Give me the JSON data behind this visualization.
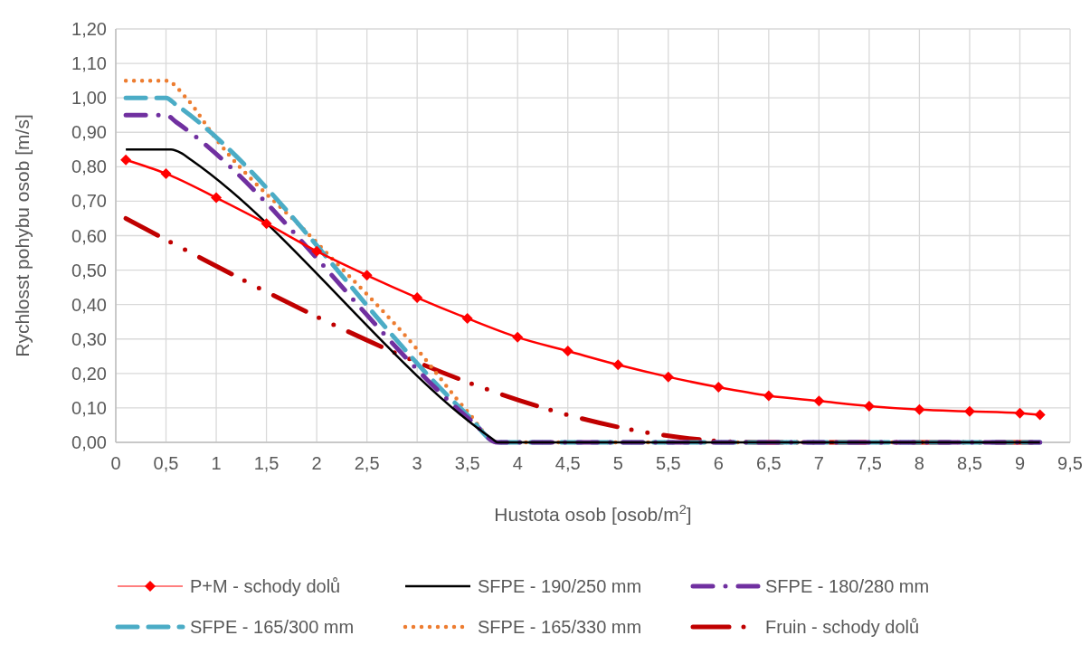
{
  "chart_data": {
    "type": "line",
    "xlabel": "Hustota osob [osob/m$^{2}$]",
    "ylabel": "Rychlosst pohybu osob [m/s]",
    "xlim": [
      0,
      9.5
    ],
    "xticks": [
      {
        "value": 0,
        "label": "0"
      },
      {
        "value": 0.5,
        "label": "0,5"
      },
      {
        "value": 1,
        "label": "1"
      },
      {
        "value": 1.5,
        "label": "1,5"
      },
      {
        "value": 2,
        "label": "2"
      },
      {
        "value": 2.5,
        "label": "2,5"
      },
      {
        "value": 3,
        "label": "3"
      },
      {
        "value": 3.5,
        "label": "3,5"
      },
      {
        "value": 4,
        "label": "4"
      },
      {
        "value": 4.5,
        "label": "4,5"
      },
      {
        "value": 5,
        "label": "5"
      },
      {
        "value": 5.5,
        "label": "5,5"
      },
      {
        "value": 6,
        "label": "6"
      },
      {
        "value": 6.5,
        "label": "6,5"
      },
      {
        "value": 7,
        "label": "7"
      },
      {
        "value": 7.5,
        "label": "7,5"
      },
      {
        "value": 8,
        "label": "8"
      },
      {
        "value": 8.5,
        "label": "8,5"
      },
      {
        "value": 9,
        "label": "9"
      },
      {
        "value": 9.5,
        "label": "9,5"
      }
    ],
    "ylim": [
      0,
      1.2
    ],
    "yticks": [
      {
        "value": 0,
        "label": "0,00"
      },
      {
        "value": 0.1,
        "label": "0,10"
      },
      {
        "value": 0.2,
        "label": "0,20"
      },
      {
        "value": 0.3,
        "label": "0,30"
      },
      {
        "value": 0.4,
        "label": "0,40"
      },
      {
        "value": 0.5,
        "label": "0,50"
      },
      {
        "value": 0.6,
        "label": "0,60"
      },
      {
        "value": 0.7,
        "label": "0,70"
      },
      {
        "value": 0.8,
        "label": "0,80"
      },
      {
        "value": 0.9,
        "label": "0,90"
      },
      {
        "value": 1,
        "label": "1,00"
      },
      {
        "value": 1.1,
        "label": "1,10"
      },
      {
        "value": 1.2,
        "label": "1,20"
      }
    ],
    "grid": true,
    "legend": "bottom",
    "series": [
      {
        "name": "P+M - schody dolů",
        "color": "#ff0000",
        "marker": "diamond",
        "line_style": "solid",
        "x": [
          0.1,
          0.5,
          1,
          1.5,
          2,
          2.5,
          3,
          3.5,
          4,
          4.5,
          5,
          5.5,
          6,
          6.5,
          7,
          7.5,
          8,
          8.5,
          9,
          9.2
        ],
        "values": [
          0.82,
          0.78,
          0.71,
          0.635,
          0.555,
          0.485,
          0.42,
          0.36,
          0.305,
          0.265,
          0.225,
          0.19,
          0.16,
          0.135,
          0.12,
          0.105,
          0.095,
          0.09,
          0.085,
          0.08
        ]
      },
      {
        "name": "SFPE - 190/250 mm",
        "color": "#000000",
        "marker": "none",
        "line_style": "solid",
        "x": [
          0.1,
          0.55,
          0.65,
          0.75,
          3.75,
          3.8,
          9.2
        ],
        "values": [
          0.85,
          0.85,
          0.84,
          0.82,
          0.01,
          0,
          0
        ]
      },
      {
        "name": "SFPE - 180/280 mm",
        "color": "#7030a0",
        "marker": "none",
        "line_style": "dashdot",
        "x": [
          0.1,
          0.5,
          0.6,
          3.55,
          3.8,
          9.2
        ],
        "values": [
          0.95,
          0.95,
          0.93,
          0.06,
          0,
          0
        ]
      },
      {
        "name": "SFPE - 165/300 mm",
        "color": "#4bacc6",
        "marker": "none",
        "line_style": "dashed",
        "x": [
          0.1,
          0.5,
          0.6,
          3.5,
          3.8,
          9.2
        ],
        "values": [
          1,
          1,
          0.98,
          0.08,
          0,
          0
        ]
      },
      {
        "name": "SFPE - 165/330 mm",
        "color": "#ed7d31",
        "marker": "none",
        "line_style": "dotted",
        "x": [
          0.1,
          0.5,
          0.7,
          1,
          2,
          3,
          3.5,
          3.8,
          9.2
        ],
        "values": [
          1.05,
          1.05,
          1,
          0.88,
          0.58,
          0.27,
          0.09,
          0,
          0
        ]
      },
      {
        "name": "Fruin - schody dolů",
        "color": "#c00000",
        "marker": "none",
        "line_style": "dashdotdot",
        "x": [
          0.1,
          6.4,
          9.2
        ],
        "values": [
          0.65,
          0,
          0
        ]
      }
    ]
  }
}
